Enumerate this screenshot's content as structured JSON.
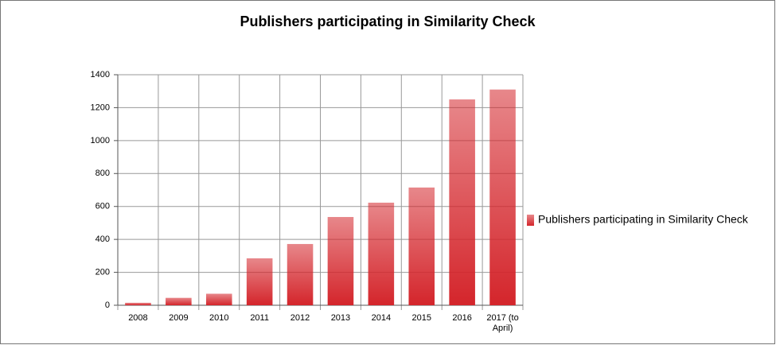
{
  "chart_data": {
    "type": "bar",
    "title": "Publishers participating in Similarity Check",
    "categories": [
      "2008",
      "2009",
      "2010",
      "2011",
      "2012",
      "2013",
      "2014",
      "2015",
      "2016",
      "2017 (to April)"
    ],
    "series": [
      {
        "name": "Publishers participating in Similarity Check",
        "color": "#d4252b",
        "values": [
          15,
          45,
          70,
          285,
          372,
          536,
          623,
          715,
          1250,
          1310
        ]
      }
    ],
    "ylim": [
      0,
      1400
    ],
    "yticks": [
      0,
      200,
      400,
      600,
      800,
      1000,
      1200,
      1400
    ],
    "grid": true
  }
}
